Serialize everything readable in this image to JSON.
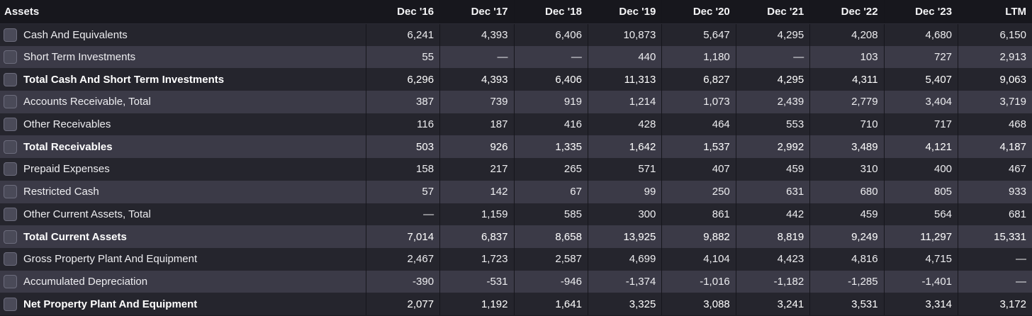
{
  "table": {
    "header": {
      "label": "Assets",
      "periods": [
        "Dec '16",
        "Dec '17",
        "Dec '18",
        "Dec '19",
        "Dec '20",
        "Dec '21",
        "Dec '22",
        "Dec '23",
        "LTM"
      ]
    },
    "rows": [
      {
        "label": "Cash And Equivalents",
        "bold": false,
        "values": [
          "6,241",
          "4,393",
          "6,406",
          "10,873",
          "5,647",
          "4,295",
          "4,208",
          "4,680",
          "6,150"
        ]
      },
      {
        "label": "Short Term Investments",
        "bold": false,
        "values": [
          "55",
          "—",
          "—",
          "440",
          "1,180",
          "—",
          "103",
          "727",
          "2,913"
        ]
      },
      {
        "label": "Total Cash And Short Term Investments",
        "bold": true,
        "values": [
          "6,296",
          "4,393",
          "6,406",
          "11,313",
          "6,827",
          "4,295",
          "4,311",
          "5,407",
          "9,063"
        ]
      },
      {
        "label": "Accounts Receivable, Total",
        "bold": false,
        "values": [
          "387",
          "739",
          "919",
          "1,214",
          "1,073",
          "2,439",
          "2,779",
          "3,404",
          "3,719"
        ]
      },
      {
        "label": "Other Receivables",
        "bold": false,
        "values": [
          "116",
          "187",
          "416",
          "428",
          "464",
          "553",
          "710",
          "717",
          "468"
        ]
      },
      {
        "label": "Total Receivables",
        "bold": true,
        "values": [
          "503",
          "926",
          "1,335",
          "1,642",
          "1,537",
          "2,992",
          "3,489",
          "4,121",
          "4,187"
        ]
      },
      {
        "label": "Prepaid Expenses",
        "bold": false,
        "values": [
          "158",
          "217",
          "265",
          "571",
          "407",
          "459",
          "310",
          "400",
          "467"
        ]
      },
      {
        "label": "Restricted Cash",
        "bold": false,
        "values": [
          "57",
          "142",
          "67",
          "99",
          "250",
          "631",
          "680",
          "805",
          "933"
        ]
      },
      {
        "label": "Other Current Assets, Total",
        "bold": false,
        "values": [
          "—",
          "1,159",
          "585",
          "300",
          "861",
          "442",
          "459",
          "564",
          "681"
        ]
      },
      {
        "label": "Total Current Assets",
        "bold": true,
        "values": [
          "7,014",
          "6,837",
          "8,658",
          "13,925",
          "9,882",
          "8,819",
          "9,249",
          "11,297",
          "15,331"
        ]
      },
      {
        "label": "Gross Property Plant And Equipment",
        "bold": false,
        "values": [
          "2,467",
          "1,723",
          "2,587",
          "4,699",
          "4,104",
          "4,423",
          "4,816",
          "4,715",
          "—"
        ]
      },
      {
        "label": "Accumulated Depreciation",
        "bold": false,
        "values": [
          "-390",
          "-531",
          "-946",
          "-1,374",
          "-1,016",
          "-1,182",
          "-1,285",
          "-1,401",
          "—"
        ]
      },
      {
        "label": "Net Property Plant And Equipment",
        "bold": true,
        "values": [
          "2,077",
          "1,192",
          "1,641",
          "3,325",
          "3,088",
          "3,241",
          "3,531",
          "3,314",
          "3,172"
        ]
      }
    ]
  },
  "colors": {
    "header_bg": "#17171d",
    "row_dark": "#25252d",
    "row_light": "#3b3a47",
    "checkbox": "#4a4a58",
    "text": "#ededf0"
  }
}
